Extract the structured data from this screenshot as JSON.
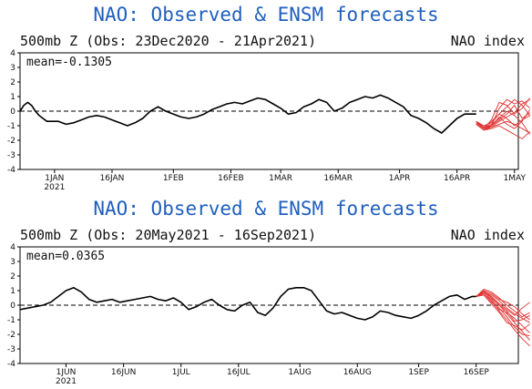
{
  "chart_data": [
    {
      "type": "line",
      "title": "NAO: Observed & ENSM forecasts",
      "subtitle_left": "500mb Z (Obs: 23Dec2020 - 21Apr2021)",
      "subtitle_right": "NAO index",
      "mean_label": "mean=-0.1305",
      "ylim": [
        -4,
        4
      ],
      "yticks": [
        "4",
        "3",
        "2",
        "1",
        "0",
        "-1",
        "-2",
        "-3",
        "-4"
      ],
      "ytick_values": [
        4,
        3,
        2,
        1,
        0,
        -1,
        -2,
        -3,
        -4
      ],
      "x_range_days": [
        0,
        130
      ],
      "xticks": [
        {
          "day": 9,
          "label": "1JAN",
          "sub": "2021"
        },
        {
          "day": 24,
          "label": "16JAN",
          "sub": ""
        },
        {
          "day": 40,
          "label": "1FEB",
          "sub": ""
        },
        {
          "day": 55,
          "label": "16FEB",
          "sub": ""
        },
        {
          "day": 68,
          "label": "1MAR",
          "sub": ""
        },
        {
          "day": 83,
          "label": "16MAR",
          "sub": ""
        },
        {
          "day": 99,
          "label": "1APR",
          "sub": ""
        },
        {
          "day": 114,
          "label": "16APR",
          "sub": ""
        },
        {
          "day": 129,
          "label": "1MAY",
          "sub": ""
        }
      ],
      "observed": {
        "color": "#000000",
        "x": [
          0,
          1,
          2,
          3,
          4,
          5,
          6,
          7,
          8,
          10,
          12,
          14,
          16,
          18,
          20,
          22,
          24,
          26,
          28,
          30,
          32,
          34,
          36,
          38,
          40,
          42,
          44,
          46,
          48,
          50,
          52,
          54,
          56,
          58,
          60,
          62,
          64,
          66,
          68,
          70,
          72,
          74,
          76,
          78,
          80,
          82,
          84,
          86,
          88,
          90,
          92,
          94,
          96,
          98,
          100,
          102,
          104,
          106,
          108,
          110,
          112,
          114,
          116,
          118,
          119
        ],
        "y": [
          0.0,
          0.4,
          0.6,
          0.4,
          0.0,
          -0.3,
          -0.5,
          -0.7,
          -0.7,
          -0.7,
          -0.9,
          -0.8,
          -0.6,
          -0.4,
          -0.3,
          -0.4,
          -0.6,
          -0.8,
          -1.0,
          -0.8,
          -0.5,
          0.0,
          0.3,
          0.0,
          -0.2,
          -0.4,
          -0.5,
          -0.4,
          -0.2,
          0.1,
          0.3,
          0.5,
          0.6,
          0.5,
          0.7,
          0.9,
          0.8,
          0.5,
          0.2,
          -0.2,
          -0.1,
          0.3,
          0.5,
          0.8,
          0.6,
          0.0,
          0.2,
          0.6,
          0.8,
          1.0,
          0.9,
          1.1,
          0.9,
          0.6,
          0.3,
          -0.3,
          -0.5,
          -0.8,
          -1.2,
          -1.5,
          -1.0,
          -0.5,
          -0.2,
          -0.2,
          -0.2
        ]
      },
      "forecasts": {
        "color": "#e03030",
        "x": [
          119,
          121,
          123,
          125,
          127,
          129,
          131,
          133
        ],
        "members": [
          [
            -0.7,
            -1.1,
            -1.0,
            0.2,
            0.8,
            0.5,
            0.7,
            0.2
          ],
          [
            -0.8,
            -1.2,
            -0.6,
            0.6,
            0.4,
            -0.2,
            0.2,
            0.9
          ],
          [
            -0.9,
            -1.3,
            -1.0,
            -0.6,
            -0.2,
            0.4,
            -0.5,
            -0.1
          ],
          [
            -0.8,
            -1.2,
            -1.1,
            -0.9,
            -0.7,
            -0.9,
            -1.2,
            -1.5
          ],
          [
            -0.7,
            -1.0,
            -0.8,
            -0.2,
            -0.5,
            -1.0,
            -0.6,
            -0.3
          ],
          [
            -0.9,
            -1.3,
            -1.2,
            -1.0,
            -1.3,
            -1.6,
            -1.9,
            -1.4
          ],
          [
            -0.8,
            -1.1,
            -0.9,
            -0.5,
            0.0,
            -0.3,
            -0.8,
            -1.6
          ],
          [
            -0.7,
            -1.1,
            -0.7,
            -0.2,
            0.3,
            0.8,
            0.4,
            -0.3
          ],
          [
            -0.8,
            -1.2,
            -1.0,
            -0.4,
            -0.9,
            -1.2,
            -0.7,
            0.1
          ],
          [
            -0.9,
            -1.3,
            -1.1,
            -0.7,
            -0.4,
            -0.1,
            0.5,
            0.8
          ]
        ]
      }
    },
    {
      "type": "line",
      "title": "NAO: Observed & ENSM forecasts",
      "subtitle_left": "500mb Z (Obs: 20May2021 - 16Sep2021)",
      "subtitle_right": "NAO index",
      "mean_label": "mean=0.0365",
      "ylim": [
        -4,
        4
      ],
      "yticks": [
        "4",
        "3",
        "2",
        "1",
        "0",
        "-1",
        "-2",
        "-3",
        "-4"
      ],
      "ytick_values": [
        4,
        3,
        2,
        1,
        0,
        -1,
        -2,
        -3,
        -4
      ],
      "x_range_days": [
        0,
        130
      ],
      "xticks": [
        {
          "day": 12,
          "label": "1JUN",
          "sub": "2021"
        },
        {
          "day": 27,
          "label": "16JUN",
          "sub": ""
        },
        {
          "day": 42,
          "label": "1JUL",
          "sub": ""
        },
        {
          "day": 57,
          "label": "16JUL",
          "sub": ""
        },
        {
          "day": 73,
          "label": "1AUG",
          "sub": ""
        },
        {
          "day": 88,
          "label": "16AUG",
          "sub": ""
        },
        {
          "day": 104,
          "label": "1SEP",
          "sub": ""
        },
        {
          "day": 119,
          "label": "16SEP",
          "sub": ""
        }
      ],
      "observed": {
        "color": "#000000",
        "x": [
          0,
          2,
          4,
          6,
          8,
          10,
          12,
          14,
          16,
          18,
          20,
          22,
          24,
          26,
          28,
          30,
          32,
          34,
          36,
          38,
          40,
          42,
          44,
          46,
          48,
          50,
          52,
          54,
          56,
          58,
          60,
          62,
          64,
          66,
          68,
          70,
          72,
          74,
          76,
          78,
          80,
          82,
          84,
          86,
          88,
          90,
          92,
          94,
          96,
          98,
          100,
          102,
          104,
          106,
          108,
          110,
          112,
          114,
          116,
          118,
          119
        ],
        "y": [
          -0.3,
          -0.2,
          -0.1,
          0.0,
          0.2,
          0.6,
          1.0,
          1.2,
          0.9,
          0.4,
          0.2,
          0.3,
          0.4,
          0.2,
          0.3,
          0.4,
          0.5,
          0.6,
          0.4,
          0.3,
          0.5,
          0.2,
          -0.3,
          -0.1,
          0.2,
          0.4,
          0.0,
          -0.3,
          -0.4,
          0.0,
          0.2,
          -0.5,
          -0.7,
          -0.2,
          0.6,
          1.1,
          1.2,
          1.2,
          1.0,
          0.3,
          -0.4,
          -0.6,
          -0.5,
          -0.7,
          -0.9,
          -1.0,
          -0.8,
          -0.4,
          -0.5,
          -0.7,
          -0.8,
          -0.9,
          -0.7,
          -0.4,
          0.0,
          0.3,
          0.6,
          0.7,
          0.4,
          0.6,
          0.6
        ]
      },
      "forecasts": {
        "color": "#e03030",
        "x": [
          119,
          121,
          123,
          125,
          127,
          129,
          131,
          133
        ],
        "members": [
          [
            0.6,
            0.9,
            0.7,
            0.3,
            -0.2,
            -0.6,
            -0.9,
            -1.2
          ],
          [
            0.6,
            1.0,
            0.5,
            0.0,
            -0.6,
            -1.2,
            -1.8,
            -2.4
          ],
          [
            0.6,
            0.8,
            0.3,
            -0.4,
            -1.0,
            -1.7,
            -2.3,
            -2.8
          ],
          [
            0.6,
            1.1,
            0.9,
            0.5,
            0.0,
            -0.4,
            -0.8,
            -0.5
          ],
          [
            0.6,
            0.7,
            0.2,
            -0.3,
            -0.5,
            -0.9,
            -1.4,
            -1.9
          ],
          [
            0.6,
            0.9,
            0.6,
            0.1,
            -0.3,
            -0.7,
            -0.2,
            0.2
          ],
          [
            0.6,
            0.8,
            0.4,
            -0.2,
            -0.8,
            -1.5,
            -2.0,
            -2.1
          ],
          [
            0.6,
            1.0,
            0.8,
            0.4,
            0.2,
            -0.1,
            -0.6,
            -1.0
          ],
          [
            0.6,
            0.7,
            0.1,
            -0.5,
            -1.2,
            -1.4,
            -1.7,
            -1.3
          ],
          [
            0.6,
            0.9,
            0.5,
            0.0,
            -0.4,
            -1.1,
            -1.0,
            -0.7
          ]
        ]
      }
    }
  ]
}
